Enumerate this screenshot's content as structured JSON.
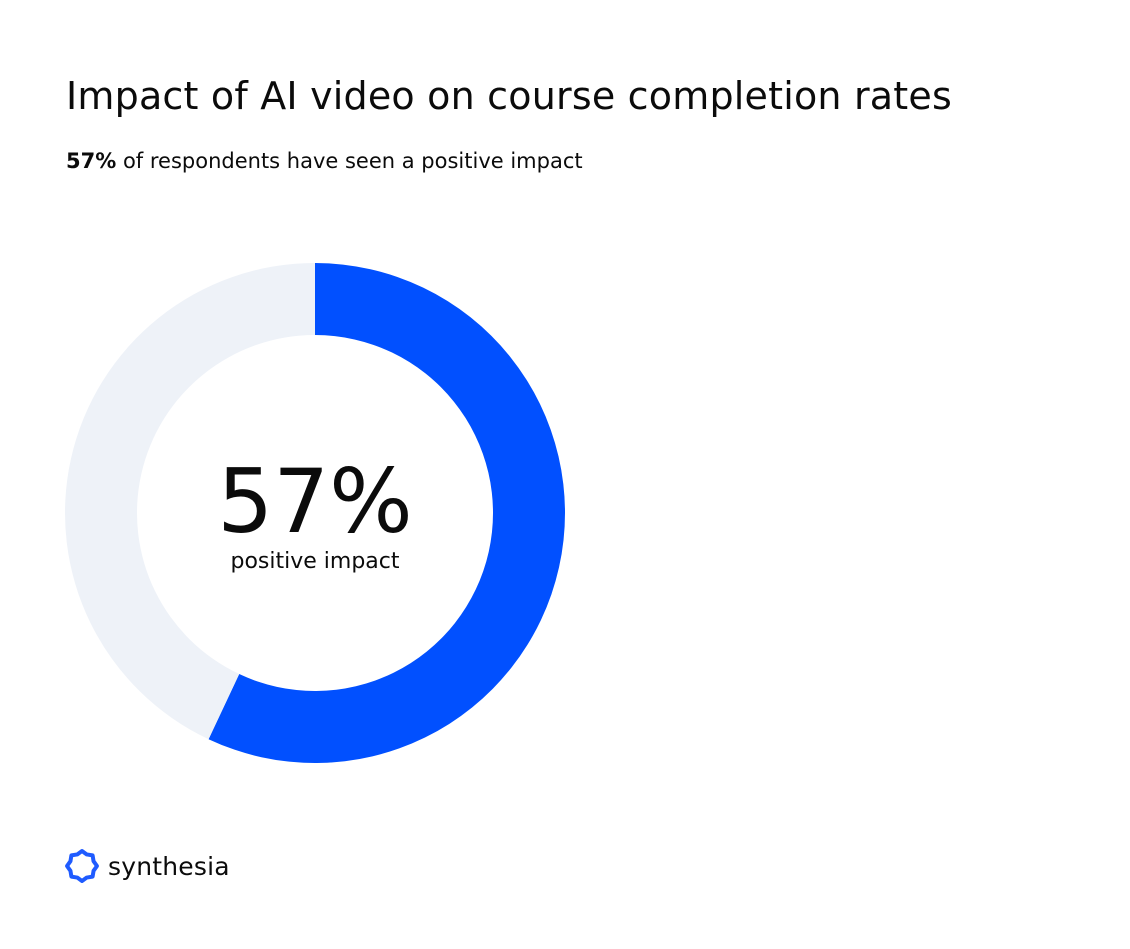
{
  "header": {
    "title": "Impact of AI video on course completion rates",
    "subtitle_strong": "57%",
    "subtitle_rest": " of respondents have seen a positive impact"
  },
  "chart_data": {
    "type": "pie",
    "donut": true,
    "categories": [
      "positive impact",
      "other"
    ],
    "values": [
      57,
      43
    ],
    "colors": [
      "#0150ff",
      "#eef2f8"
    ],
    "center_value": "57%",
    "center_label": "positive impact",
    "legend": "none"
  },
  "brand": {
    "name": "synthesia",
    "logo_icon": "synthesia-logo-icon",
    "color": "#1f5bff"
  }
}
